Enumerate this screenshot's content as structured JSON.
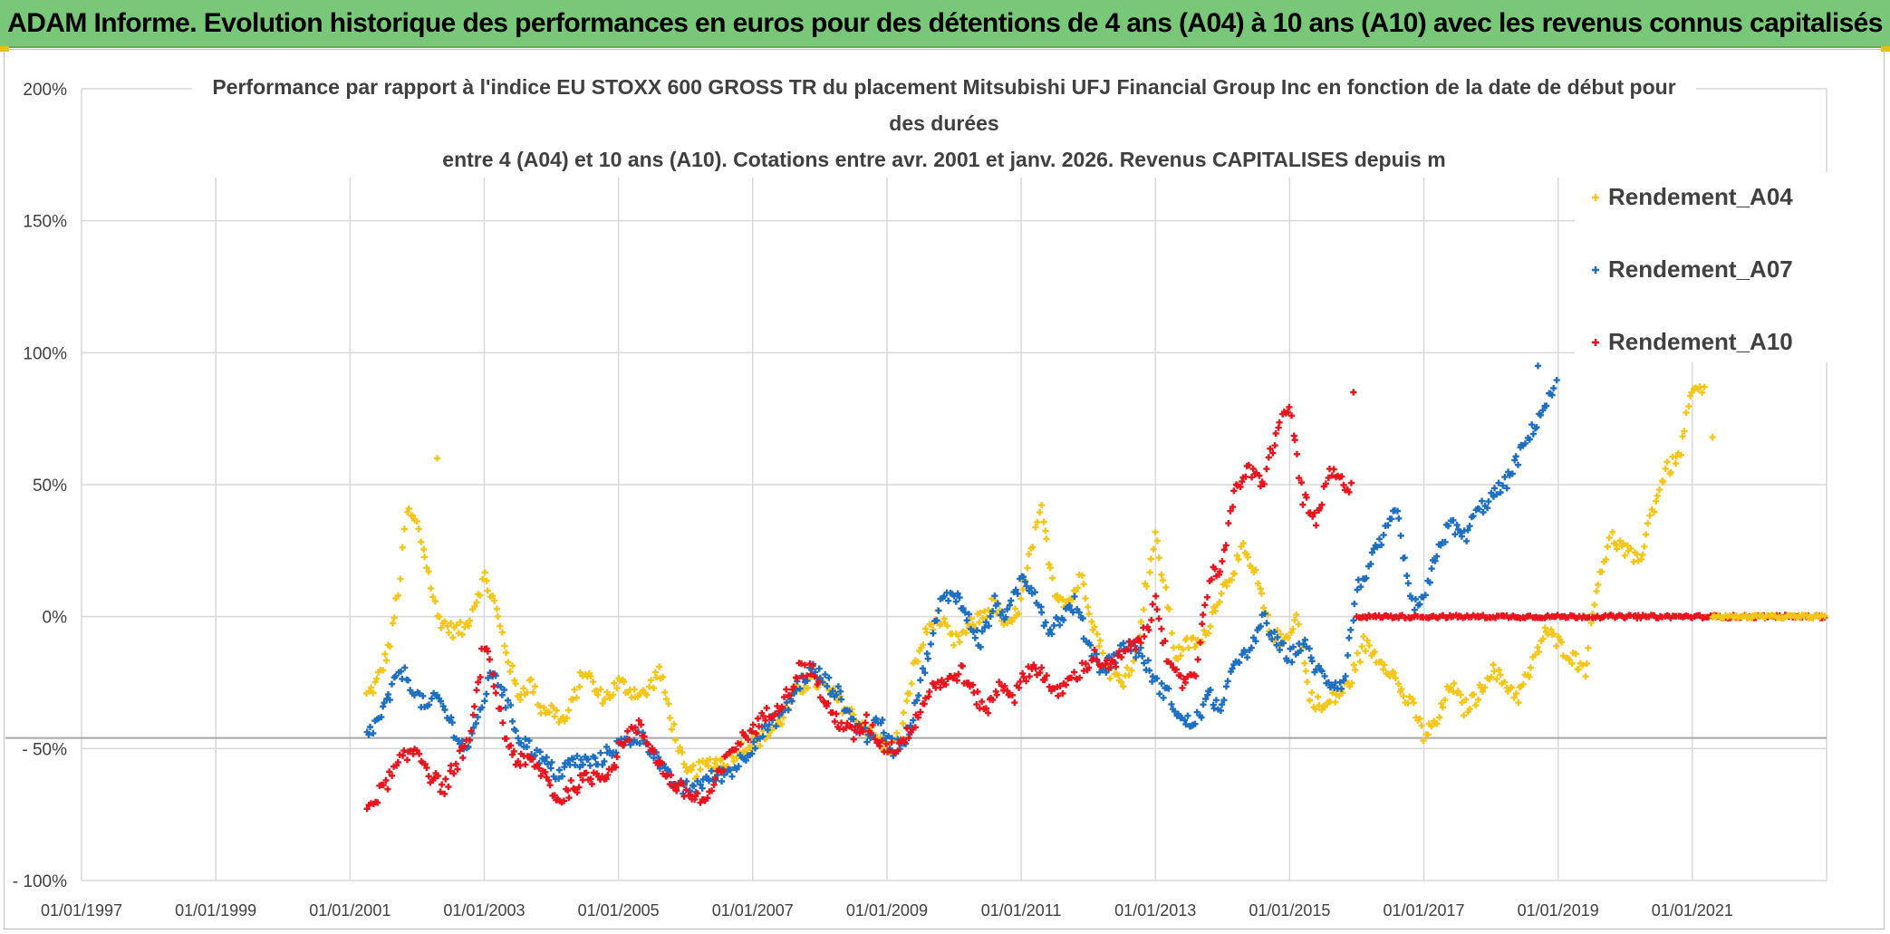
{
  "banner": {
    "text": "ADAM Informe. Evolution historique des performances en euros pour des détentions de 4 ans (A04) à 10 ans (A10) avec les revenus connus capitalisés"
  },
  "chart_data": {
    "type": "scatter",
    "title_lines": [
      "Performance par rapport à l'indice EU STOXX 600 GROSS TR  du placement Mitsubishi UFJ Financial Group Inc en fonction de la date de début pour",
      "des durées",
      "entre 4 (A04) et 10 ans (A10). Cotations entre avr. 2001 et janv. 2026. Revenus CAPITALISES depuis m"
    ],
    "xlabel": "",
    "ylabel": "",
    "x_range": [
      1997.0,
      2023.0
    ],
    "ylim": [
      -100,
      200
    ],
    "y_ticks": [
      -100,
      -50,
      0,
      50,
      100,
      150,
      200
    ],
    "y_tick_labels": [
      "- 100%",
      "- 50%",
      "0%",
      "50%",
      "100%",
      "150%",
      "200%"
    ],
    "x_ticks": [
      1997,
      1999,
      2001,
      2003,
      2005,
      2007,
      2009,
      2011,
      2013,
      2015,
      2017,
      2019,
      2021
    ],
    "x_tick_labels": [
      "01/01/1997",
      "01/01/1999",
      "01/01/2001",
      "01/01/2003",
      "01/01/2005",
      "01/01/2007",
      "01/01/2009",
      "01/01/2011",
      "01/01/2013",
      "01/01/2015",
      "01/01/2017",
      "01/01/2019",
      "01/01/2021"
    ],
    "reference_line_y": -46,
    "legend_position": "top-right",
    "series": [
      {
        "name": "Rendement_A04",
        "color": "#f5c518",
        "noise": 3,
        "x": [
          2001.25,
          2001.4,
          2001.6,
          2001.75,
          2001.85,
          2002.0,
          2002.15,
          2002.3,
          2002.5,
          2002.7,
          2002.85,
          2003.0,
          2003.15,
          2003.3,
          2003.5,
          2003.7,
          2003.85,
          2004.0,
          2004.2,
          2004.5,
          2004.7,
          2004.85,
          2005.0,
          2005.2,
          2005.4,
          2005.6,
          2005.8,
          2006.0,
          2006.2,
          2006.4,
          2006.6,
          2006.8,
          2007.0,
          2007.2,
          2007.4,
          2007.6,
          2007.8,
          2008.0,
          2008.2,
          2008.4,
          2008.6,
          2008.8,
          2009.0,
          2009.2,
          2009.4,
          2009.6,
          2009.75,
          2010.0,
          2010.2,
          2010.4,
          2010.6,
          2010.8,
          2011.0,
          2011.15,
          2011.3,
          2011.5,
          2011.7,
          2011.9,
          2012.1,
          2012.3,
          2012.5,
          2012.7,
          2012.85,
          2013.0,
          2013.15,
          2013.3,
          2013.5,
          2013.7,
          2013.9,
          2014.1,
          2014.3,
          2014.5,
          2014.7,
          2014.9,
          2015.1,
          2015.3,
          2015.5,
          2015.7,
          2015.9,
          2016.1,
          2016.3,
          2016.5,
          2016.7,
          2016.85,
          2017.0,
          2017.2,
          2017.4,
          2017.6,
          2017.8,
          2018.0,
          2018.2,
          2018.4,
          2018.6,
          2018.8,
          2019.0,
          2019.2,
          2019.4,
          2019.6,
          2019.8,
          2020.0,
          2020.2,
          2020.4,
          2020.6,
          2020.8,
          2021.0,
          2021.2
        ],
        "y": [
          -30,
          -25,
          -10,
          15,
          40,
          35,
          20,
          0,
          -5,
          -5,
          5,
          15,
          5,
          -10,
          -30,
          -25,
          -35,
          -35,
          -40,
          -20,
          -30,
          -30,
          -25,
          -28,
          -30,
          -20,
          -40,
          -60,
          -58,
          -55,
          -55,
          -50,
          -48,
          -45,
          -40,
          -30,
          -25,
          -25,
          -30,
          -35,
          -40,
          -45,
          -50,
          -45,
          -20,
          -5,
          0,
          -10,
          -5,
          0,
          5,
          -5,
          5,
          25,
          40,
          10,
          5,
          15,
          -5,
          -20,
          -25,
          -15,
          10,
          30,
          10,
          -15,
          -10,
          -10,
          5,
          15,
          25,
          15,
          -5,
          -10,
          0,
          -30,
          -35,
          -30,
          -25,
          -10,
          -15,
          -20,
          -30,
          -35,
          -45,
          -40,
          -25,
          -35,
          -30,
          -20,
          -25,
          -30,
          -20,
          -5,
          -10,
          -15,
          -20,
          15,
          30,
          25,
          20,
          40,
          55,
          60,
          85,
          85
        ]
      },
      {
        "name": "Rendement_A07",
        "color": "#1e6fc0",
        "noise": 3,
        "x": [
          2001.25,
          2001.4,
          2001.6,
          2001.75,
          2001.9,
          2002.0,
          2002.15,
          2002.3,
          2002.5,
          2002.7,
          2002.85,
          2003.0,
          2003.15,
          2003.3,
          2003.5,
          2003.7,
          2003.9,
          2004.1,
          2004.3,
          2004.5,
          2004.7,
          2004.9,
          2005.1,
          2005.3,
          2005.5,
          2005.7,
          2005.9,
          2006.1,
          2006.3,
          2006.5,
          2006.7,
          2006.9,
          2007.1,
          2007.3,
          2007.5,
          2007.7,
          2007.9,
          2008.1,
          2008.3,
          2008.5,
          2008.7,
          2008.9,
          2009.1,
          2009.3,
          2009.5,
          2009.65,
          2009.8,
          2010.0,
          2010.2,
          2010.4,
          2010.6,
          2010.8,
          2011.0,
          2011.2,
          2011.4,
          2011.6,
          2011.8,
          2012.0,
          2012.2,
          2012.4,
          2012.6,
          2012.8,
          2013.0,
          2013.2,
          2013.4,
          2013.6,
          2013.8,
          2014.0,
          2014.2,
          2014.4,
          2014.6,
          2014.8,
          2015.0,
          2015.2,
          2015.4,
          2015.6,
          2015.8,
          2016.0,
          2016.2,
          2016.4,
          2016.6,
          2016.8,
          2017.0,
          2017.2,
          2017.4,
          2017.6,
          2017.8,
          2018.0,
          2018.2,
          2018.4,
          2018.6,
          2018.8,
          2019.0
        ],
        "y": [
          -45,
          -40,
          -30,
          -20,
          -25,
          -30,
          -35,
          -30,
          -40,
          -50,
          -45,
          -30,
          -20,
          -30,
          -45,
          -50,
          -55,
          -60,
          -55,
          -55,
          -55,
          -50,
          -48,
          -45,
          -50,
          -60,
          -65,
          -65,
          -62,
          -60,
          -58,
          -52,
          -45,
          -40,
          -35,
          -25,
          -20,
          -25,
          -30,
          -40,
          -45,
          -40,
          -50,
          -45,
          -25,
          -10,
          5,
          10,
          0,
          -10,
          5,
          0,
          15,
          10,
          -5,
          0,
          5,
          -10,
          -20,
          -15,
          -10,
          -15,
          -25,
          -30,
          -40,
          -40,
          -30,
          -35,
          -15,
          -15,
          0,
          -10,
          -15,
          -10,
          -20,
          -25,
          -25,
          10,
          20,
          30,
          40,
          5,
          5,
          25,
          35,
          30,
          40,
          45,
          50,
          60,
          70,
          80,
          88
        ]
      },
      {
        "name": "Rendement_A10",
        "color": "#e8141e",
        "noise": 3,
        "x": [
          2001.25,
          2001.5,
          2001.75,
          2002.0,
          2002.2,
          2002.4,
          2002.6,
          2002.8,
          2003.0,
          2003.15,
          2003.3,
          2003.5,
          2003.7,
          2003.9,
          2004.1,
          2004.3,
          2004.5,
          2004.7,
          2004.9,
          2005.1,
          2005.3,
          2005.5,
          2005.7,
          2005.9,
          2006.1,
          2006.3,
          2006.5,
          2006.7,
          2006.9,
          2007.1,
          2007.3,
          2007.5,
          2007.7,
          2007.9,
          2008.1,
          2008.3,
          2008.5,
          2008.7,
          2008.9,
          2009.1,
          2009.3,
          2009.5,
          2009.7,
          2009.9,
          2010.1,
          2010.3,
          2010.5,
          2010.7,
          2010.9,
          2011.1,
          2011.3,
          2011.5,
          2011.7,
          2011.9,
          2012.1,
          2012.3,
          2012.5,
          2012.7,
          2012.9,
          2013.0,
          2013.2,
          2013.4,
          2013.6,
          2013.8,
          2014.0,
          2014.2,
          2014.4,
          2014.6,
          2014.8,
          2015.0,
          2015.2,
          2015.4,
          2015.6,
          2015.8,
          2015.95
        ],
        "y": [
          -72,
          -65,
          -55,
          -50,
          -60,
          -65,
          -55,
          -45,
          -10,
          -25,
          -45,
          -55,
          -55,
          -60,
          -70,
          -65,
          -62,
          -60,
          -58,
          -45,
          -42,
          -50,
          -60,
          -65,
          -68,
          -70,
          -60,
          -50,
          -45,
          -40,
          -35,
          -30,
          -20,
          -20,
          -35,
          -40,
          -45,
          -40,
          -48,
          -50,
          -45,
          -35,
          -25,
          -25,
          -20,
          -30,
          -35,
          -25,
          -30,
          -20,
          -20,
          -30,
          -25,
          -20,
          -15,
          -20,
          -15,
          -10,
          -5,
          10,
          -20,
          -25,
          -20,
          15,
          20,
          50,
          55,
          50,
          70,
          80,
          45,
          35,
          55,
          50,
          50
        ]
      },
      {
        "name": "Rendement_A10",
        "color": "#e8141e",
        "noise": 0.6,
        "x": [
          2016.0,
          2017.0,
          2018.0,
          2019.0,
          2020.0,
          2021.0,
          2022.0,
          2023.0
        ],
        "y": [
          0,
          0,
          0,
          0,
          0,
          0,
          0,
          0
        ]
      },
      {
        "name": "Rendement_A04",
        "color": "#f5c518",
        "noise": 0.6,
        "x": [
          2021.3,
          2022.0,
          2023.0
        ],
        "y": [
          0,
          0,
          0
        ]
      }
    ],
    "outliers": [
      {
        "series": "Rendement_A10",
        "x": 2015.95,
        "y": 85
      },
      {
        "series": "Rendement_A04",
        "x": 2021.3,
        "y": 68
      },
      {
        "series": "Rendement_A04",
        "x": 2002.3,
        "y": 60
      },
      {
        "series": "Rendement_A07",
        "x": 2018.7,
        "y": 95
      }
    ],
    "legend": [
      {
        "name": "Rendement_A04",
        "color": "#f5c518"
      },
      {
        "name": "Rendement_A07",
        "color": "#1e6fc0"
      },
      {
        "name": "Rendement_A10",
        "color": "#e8141e"
      }
    ]
  }
}
